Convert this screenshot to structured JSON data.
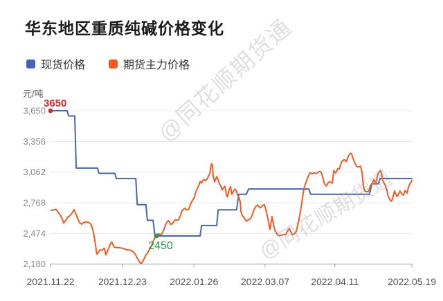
{
  "page": {
    "title": "华东地区重质纯碱价格变化"
  },
  "watermark": {
    "text": "@同花顺期货通"
  },
  "chart_data": {
    "type": "line",
    "title": "华东地区重质纯碱价格变化",
    "unit": "元/吨",
    "grid": true,
    "legend_position": "top-left",
    "ylim": [
      2180,
      3650
    ],
    "y_ticks": [
      3650,
      3356,
      3062,
      2768,
      2474,
      2180
    ],
    "y_tick_labels": [
      "3,650",
      "3,356",
      "3,062",
      "2,768",
      "2,474",
      "2,180"
    ],
    "x_tick_labels": [
      "2021.11.22",
      "2021.12.23",
      "2022.01.26",
      "2022.03.07",
      "2022.04.11",
      "2022.05.19"
    ],
    "x_tick_pos": [
      0,
      19.9,
      39.7,
      59.4,
      78.7,
      100
    ],
    "axis_color": "#aaaaaa",
    "grid_color": "#e9e9e9",
    "y_label_color": "#8c8c8c",
    "x_label_color": "#4f4f4f",
    "series": [
      {
        "name": "现货价格",
        "color": "#4565b4",
        "points": [
          [
            0,
            3650
          ],
          [
            4.6,
            3650
          ],
          [
            5.0,
            3600
          ],
          [
            6.7,
            3600
          ],
          [
            7.1,
            3100
          ],
          [
            13.0,
            3100
          ],
          [
            13.4,
            3050
          ],
          [
            17.8,
            3050
          ],
          [
            18.2,
            3000
          ],
          [
            23.6,
            3000
          ],
          [
            24.0,
            2750
          ],
          [
            26.4,
            2750
          ],
          [
            26.8,
            2600
          ],
          [
            28.4,
            2600
          ],
          [
            28.9,
            2450
          ],
          [
            41.4,
            2450
          ],
          [
            41.8,
            2550
          ],
          [
            46.0,
            2550
          ],
          [
            46.4,
            2700
          ],
          [
            51.5,
            2700
          ],
          [
            52.1,
            2850
          ],
          [
            54.2,
            2850
          ],
          [
            54.8,
            2900
          ],
          [
            71.5,
            2900
          ],
          [
            72.0,
            2850
          ],
          [
            88.3,
            2850
          ],
          [
            88.9,
            2950
          ],
          [
            90.8,
            2950
          ],
          [
            91.2,
            3000
          ],
          [
            100,
            3000
          ]
        ]
      },
      {
        "name": "期货主力价格",
        "color": "#f5591d",
        "points": [
          [
            0.2,
            2695
          ],
          [
            1.0,
            2701
          ],
          [
            1.5,
            2706
          ],
          [
            2.1,
            2678
          ],
          [
            2.7,
            2650
          ],
          [
            3.3,
            2610
          ],
          [
            3.6,
            2573
          ],
          [
            4.2,
            2600
          ],
          [
            4.8,
            2632
          ],
          [
            5.4,
            2644
          ],
          [
            5.9,
            2668
          ],
          [
            6.5,
            2702
          ],
          [
            7.1,
            2655
          ],
          [
            7.5,
            2618
          ],
          [
            8.0,
            2578
          ],
          [
            8.6,
            2563
          ],
          [
            9.2,
            2578
          ],
          [
            9.8,
            2584
          ],
          [
            10.3,
            2581
          ],
          [
            10.9,
            2572
          ],
          [
            11.3,
            2552
          ],
          [
            11.7,
            2510
          ],
          [
            12.1,
            2440
          ],
          [
            12.5,
            2350
          ],
          [
            12.8,
            2276
          ],
          [
            13.2,
            2288
          ],
          [
            13.6,
            2316
          ],
          [
            14.2,
            2312
          ],
          [
            14.6,
            2326
          ],
          [
            14.9,
            2331
          ],
          [
            15.3,
            2268
          ],
          [
            15.7,
            2300
          ],
          [
            16.1,
            2333
          ],
          [
            16.5,
            2368
          ],
          [
            16.9,
            2391
          ],
          [
            17.2,
            2372
          ],
          [
            17.6,
            2343
          ],
          [
            18.2,
            2337
          ],
          [
            18.8,
            2340
          ],
          [
            19.3,
            2336
          ],
          [
            19.9,
            2332
          ],
          [
            20.5,
            2326
          ],
          [
            21.1,
            2318
          ],
          [
            21.6,
            2316
          ],
          [
            22.2,
            2313
          ],
          [
            22.8,
            2300
          ],
          [
            23.2,
            2286
          ],
          [
            23.6,
            2266
          ],
          [
            23.9,
            2244
          ],
          [
            24.3,
            2220
          ],
          [
            24.7,
            2197
          ],
          [
            24.9,
            2188
          ],
          [
            25.3,
            2193
          ],
          [
            25.7,
            2218
          ],
          [
            26.1,
            2244
          ],
          [
            26.4,
            2268
          ],
          [
            26.8,
            2283
          ],
          [
            27.2,
            2312
          ],
          [
            27.6,
            2333
          ],
          [
            28.0,
            2361
          ],
          [
            28.4,
            2396
          ],
          [
            28.7,
            2421
          ],
          [
            29.1,
            2446
          ],
          [
            29.5,
            2463
          ],
          [
            29.9,
            2471
          ],
          [
            30.3,
            2462
          ],
          [
            30.7,
            2466
          ],
          [
            31.0,
            2481
          ],
          [
            31.4,
            2512
          ],
          [
            31.8,
            2552
          ],
          [
            32.2,
            2581
          ],
          [
            32.6,
            2596
          ],
          [
            33.0,
            2578
          ],
          [
            33.3,
            2561
          ],
          [
            33.7,
            2566
          ],
          [
            34.1,
            2586
          ],
          [
            34.5,
            2606
          ],
          [
            35.1,
            2599
          ],
          [
            35.6,
            2613
          ],
          [
            36.0,
            2651
          ],
          [
            36.4,
            2691
          ],
          [
            36.8,
            2706
          ],
          [
            37.2,
            2716
          ],
          [
            37.5,
            2703
          ],
          [
            37.9,
            2699
          ],
          [
            38.3,
            2709
          ],
          [
            38.7,
            2751
          ],
          [
            39.1,
            2781
          ],
          [
            39.5,
            2801
          ],
          [
            39.8,
            2821
          ],
          [
            40.2,
            2871
          ],
          [
            40.6,
            2901
          ],
          [
            41.0,
            2931
          ],
          [
            41.4,
            2972
          ],
          [
            41.8,
            2958
          ],
          [
            42.1,
            2981
          ],
          [
            42.5,
            2991
          ],
          [
            42.9,
            2979
          ],
          [
            43.3,
            2993
          ],
          [
            43.7,
            3021
          ],
          [
            44.1,
            3049
          ],
          [
            44.4,
            3126
          ],
          [
            44.6,
            3142
          ],
          [
            44.8,
            3121
          ],
          [
            45.0,
            3031
          ],
          [
            45.4,
            2968
          ],
          [
            45.8,
            3001
          ],
          [
            46.0,
            3018
          ],
          [
            46.4,
            2991
          ],
          [
            46.7,
            2953
          ],
          [
            47.1,
            2929
          ],
          [
            47.5,
            2891
          ],
          [
            47.9,
            2913
          ],
          [
            48.3,
            2926
          ],
          [
            48.7,
            2839
          ],
          [
            49.0,
            2823
          ],
          [
            49.4,
            2891
          ],
          [
            49.8,
            2921
          ],
          [
            50.2,
            2849
          ],
          [
            50.6,
            2877
          ],
          [
            51.0,
            2899
          ],
          [
            51.3,
            2889
          ],
          [
            51.7,
            2849
          ],
          [
            52.1,
            2821
          ],
          [
            52.5,
            2776
          ],
          [
            52.7,
            2681
          ],
          [
            53.1,
            2641
          ],
          [
            53.4,
            2636
          ],
          [
            53.8,
            2611
          ],
          [
            54.2,
            2593
          ],
          [
            54.6,
            2599
          ],
          [
            55.0,
            2611
          ],
          [
            55.4,
            2619
          ],
          [
            55.7,
            2641
          ],
          [
            56.1,
            2681
          ],
          [
            56.5,
            2713
          ],
          [
            56.9,
            2736
          ],
          [
            57.3,
            2746
          ],
          [
            57.7,
            2729
          ],
          [
            58.0,
            2719
          ],
          [
            58.4,
            2727
          ],
          [
            58.8,
            2745
          ],
          [
            59.2,
            2749
          ],
          [
            59.6,
            2701
          ],
          [
            60.0,
            2641
          ],
          [
            60.3,
            2591
          ],
          [
            60.7,
            2513
          ],
          [
            61.1,
            2586
          ],
          [
            61.3,
            2636
          ],
          [
            61.7,
            2561
          ],
          [
            62.1,
            2501
          ],
          [
            62.5,
            2481
          ],
          [
            62.8,
            2459
          ],
          [
            63.4,
            2453
          ],
          [
            64.0,
            2459
          ],
          [
            64.6,
            2461
          ],
          [
            65.1,
            2463
          ],
          [
            65.7,
            2506
          ],
          [
            66.1,
            2521
          ],
          [
            66.5,
            2491
          ],
          [
            66.9,
            2463
          ],
          [
            67.2,
            2466
          ],
          [
            67.6,
            2473
          ],
          [
            68.0,
            2493
          ],
          [
            68.4,
            2549
          ],
          [
            68.8,
            2616
          ],
          [
            69.2,
            2691
          ],
          [
            69.5,
            2761
          ],
          [
            69.9,
            2856
          ],
          [
            70.3,
            2926
          ],
          [
            70.7,
            2963
          ],
          [
            71.1,
            3001
          ],
          [
            71.5,
            3036
          ],
          [
            71.8,
            3056
          ],
          [
            72.4,
            3046
          ],
          [
            73.0,
            3053
          ],
          [
            73.6,
            3049
          ],
          [
            74.1,
            3061
          ],
          [
            74.5,
            3069
          ],
          [
            74.9,
            3059
          ],
          [
            75.3,
            3019
          ],
          [
            75.7,
            2959
          ],
          [
            76.1,
            2933
          ],
          [
            76.4,
            2929
          ],
          [
            76.8,
            2959
          ],
          [
            77.2,
            2969
          ],
          [
            77.6,
            2963
          ],
          [
            78.0,
            2956
          ],
          [
            78.4,
            3078
          ],
          [
            78.9,
            3052
          ],
          [
            79.5,
            3093
          ],
          [
            79.9,
            3091
          ],
          [
            80.5,
            3152
          ],
          [
            80.8,
            3171
          ],
          [
            81.4,
            3181
          ],
          [
            81.8,
            3161
          ],
          [
            82.4,
            3211
          ],
          [
            82.8,
            3236
          ],
          [
            83.1,
            3243
          ],
          [
            83.3,
            3239
          ],
          [
            83.7,
            3196
          ],
          [
            84.1,
            3161
          ],
          [
            84.7,
            3116
          ],
          [
            85.2,
            3111
          ],
          [
            85.8,
            3119
          ],
          [
            86.2,
            3060
          ],
          [
            86.6,
            2921
          ],
          [
            87.0,
            2881
          ],
          [
            87.5,
            2873
          ],
          [
            88.1,
            2879
          ],
          [
            88.5,
            2931
          ],
          [
            88.9,
            2946
          ],
          [
            89.5,
            2991
          ],
          [
            90.0,
            2953
          ],
          [
            90.6,
            3041
          ],
          [
            91.2,
            3076
          ],
          [
            91.6,
            3052
          ],
          [
            92.0,
            2976
          ],
          [
            92.3,
            2956
          ],
          [
            92.7,
            2931
          ],
          [
            93.1,
            2886
          ],
          [
            93.5,
            2826
          ],
          [
            94.1,
            2789
          ],
          [
            94.4,
            2783
          ],
          [
            94.8,
            2825
          ],
          [
            95.2,
            2881
          ],
          [
            95.8,
            2836
          ],
          [
            96.0,
            2828
          ],
          [
            96.6,
            2872
          ],
          [
            96.7,
            2881
          ],
          [
            97.3,
            2850
          ],
          [
            97.7,
            2841
          ],
          [
            98.1,
            2885
          ],
          [
            98.5,
            2872
          ],
          [
            98.7,
            2859
          ],
          [
            99.0,
            2909
          ],
          [
            99.4,
            2947
          ],
          [
            99.8,
            2966
          ],
          [
            100.0,
            2982
          ]
        ]
      }
    ],
    "annotations": [
      {
        "label": "3650",
        "color": "#e02626",
        "x": 0,
        "value": 3650,
        "placement": "above"
      },
      {
        "label": "2450",
        "color": "#259b4e",
        "x": 29.3,
        "value": 2450,
        "placement": "below"
      }
    ]
  }
}
